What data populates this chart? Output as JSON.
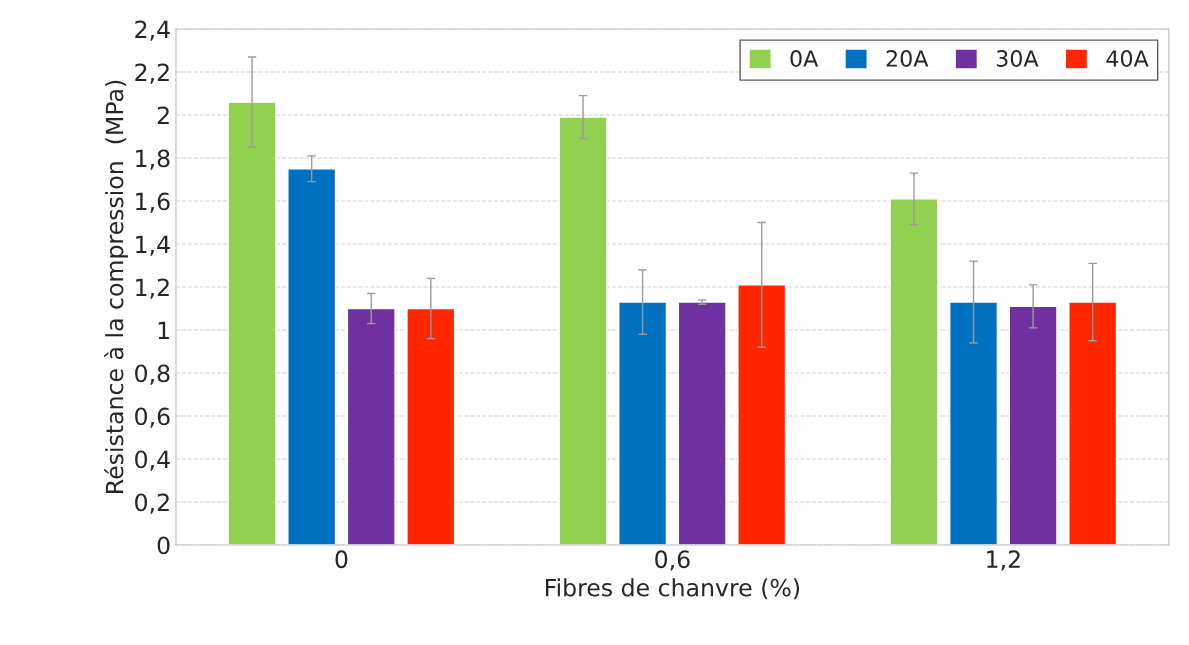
{
  "chart_data": {
    "type": "bar",
    "xlabel": "Fibres de chanvre (%)",
    "ylabel": "Résistance à la compression  (MPa)",
    "categories": [
      "0",
      "0,6",
      "1,2"
    ],
    "series": [
      {
        "name": "0A",
        "color": "#92d050",
        "values": [
          2.06,
          1.99,
          1.61
        ],
        "errors": [
          0.21,
          0.1,
          0.12
        ]
      },
      {
        "name": "20A",
        "color": "#0070c0",
        "values": [
          1.75,
          1.13,
          1.13
        ],
        "errors": [
          0.06,
          0.15,
          0.19
        ]
      },
      {
        "name": "30A",
        "color": "#7030a0",
        "values": [
          1.1,
          1.13,
          1.11
        ],
        "errors": [
          0.07,
          0.01,
          0.1
        ]
      },
      {
        "name": "40A",
        "color": "#ff2600",
        "values": [
          1.1,
          1.21,
          1.13
        ],
        "errors": [
          0.14,
          0.29,
          0.18
        ]
      }
    ],
    "ylim": [
      0,
      2.4
    ],
    "yticks": [
      0,
      {
        "value": 0.2,
        "label": "0,2"
      },
      {
        "value": 0.4,
        "label": "0,4"
      },
      {
        "value": 0.6,
        "label": "0,6"
      },
      {
        "value": 0.8,
        "label": "0,8"
      },
      1,
      {
        "value": 1.2,
        "label": "1,2"
      },
      {
        "value": 1.4,
        "label": "1,4"
      },
      {
        "value": 1.6,
        "label": "1,6"
      },
      {
        "value": 1.8,
        "label": "1,8"
      },
      2,
      {
        "value": 2.2,
        "label": "2,2"
      },
      {
        "value": 2.4,
        "label": "2,4"
      }
    ],
    "grid": "y",
    "legend": "top right"
  }
}
